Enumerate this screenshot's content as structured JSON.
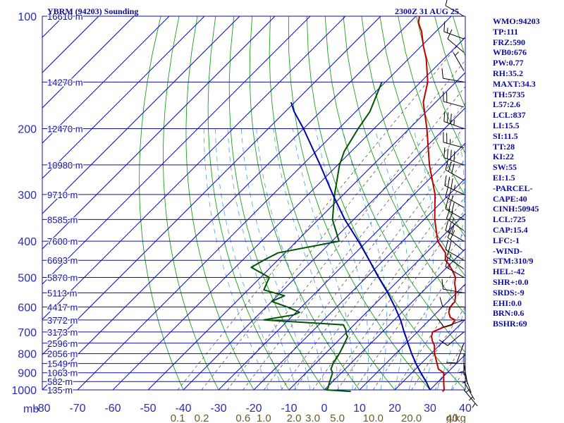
{
  "header": {
    "title": "YBRM (94203) Sounding",
    "timestamp": "2300Z 31 AUG 25"
  },
  "indices": [
    "WMO:94203",
    "TP:111",
    "FRZ:590",
    "WB0:676",
    "PW:0.77",
    "RH:35.2",
    "MAXT:34.3",
    "TH:5735",
    "L57:2.6",
    "LCL:837",
    "LI:15.5",
    "SI:11.5",
    "TT:28",
    "KI:22",
    "SW:55",
    "EI:1.5",
    "-PARCEL-",
    "CAPE:40",
    "CINH:50945",
    "LCL:725",
    "CAP:15.4",
    "LFC:-1",
    "-WIND-",
    "STM:310/9",
    "HEL:-42",
    "SHR+:0.0",
    "SRDS:-9",
    "EHI:0.0",
    "BRN:0.6",
    "BSHR:69"
  ],
  "chart_data": {
    "type": "line",
    "chart_kind": "skew-T log-P thermodynamic diagram",
    "title": "YBRM (94203) Sounding",
    "xlabel": "",
    "ylabel": "mb",
    "xlim": [
      -80,
      40
    ],
    "ylim": [
      1000,
      100
    ],
    "y_scale": "log",
    "skew": "isotherms slanted 45° toward upper right",
    "pressure_ticks": [
      "100",
      "200",
      "300",
      "400",
      "500",
      "600",
      "700",
      "800",
      "900",
      "1000"
    ],
    "pressure_lines": [
      100,
      150,
      200,
      250,
      300,
      350,
      400,
      450,
      500,
      550,
      600,
      650,
      700,
      750,
      800,
      850,
      900,
      950,
      1000
    ],
    "temperature_ticks": [
      "-80",
      "-70",
      "-60",
      "-50",
      "-40",
      "-30",
      "-20",
      "-10",
      "0",
      "10",
      "20",
      "30",
      "40"
    ],
    "height_labels": [
      {
        "p": 100,
        "label": "16610 m"
      },
      {
        "p": 150,
        "label": "14270 m"
      },
      {
        "p": 200,
        "label": "12470 m"
      },
      {
        "p": 250,
        "label": "10980 m"
      },
      {
        "p": 300,
        "label": "9710 m"
      },
      {
        "p": 350,
        "label": "8585 m"
      },
      {
        "p": 400,
        "label": "7600 m"
      },
      {
        "p": 450,
        "label": "6693 m"
      },
      {
        "p": 500,
        "label": "5870 m"
      },
      {
        "p": 550,
        "label": "5113 m"
      },
      {
        "p": 600,
        "label": "4417 m"
      },
      {
        "p": 650,
        "label": "3772 m"
      },
      {
        "p": 700,
        "label": "3173 m"
      },
      {
        "p": 750,
        "label": "2596 m"
      },
      {
        "p": 800,
        "label": "2056 m"
      },
      {
        "p": 850,
        "label": "1549 m"
      },
      {
        "p": 900,
        "label": "1063 m"
      },
      {
        "p": 950,
        "label": "582 m"
      },
      {
        "p": 1000,
        "label": "135 m"
      }
    ],
    "mixing_ratio_labels": [
      {
        "w": 0.1,
        "label": "0.1"
      },
      {
        "w": 0.2,
        "label": "0.2"
      },
      {
        "w": 0.6,
        "label": "0.6"
      },
      {
        "w": 1.0,
        "label": "1.0"
      },
      {
        "w": 2.0,
        "label": "2.0"
      },
      {
        "w": 3.0,
        "label": "3.0"
      },
      {
        "w": 5.0,
        "label": "5.0"
      },
      {
        "w": 10.0,
        "label": "10.0"
      },
      {
        "w": 20.0,
        "label": "20.0"
      },
      {
        "w": 40.0,
        "label": "40"
      }
    ],
    "mixing_ratio_unit": "g/kg",
    "series": [
      {
        "role": "temperature",
        "color": "#c00000",
        "p": [
          1010,
          1000,
          960,
          900,
          880,
          850,
          800,
          760,
          740,
          720,
          700,
          680,
          670,
          650,
          640,
          620,
          600,
          580,
          560,
          540,
          520,
          500,
          480,
          460,
          450,
          430,
          400,
          350,
          300,
          250,
          200,
          170,
          150,
          130,
          120,
          110,
          104,
          100
        ],
        "t": [
          34,
          34,
          32,
          29,
          26.5,
          24.5,
          21,
          18.6,
          16.8,
          15.3,
          14.3,
          16,
          17.8,
          17.2,
          15.2,
          13.3,
          12.2,
          12,
          10.5,
          8.9,
          6.9,
          5.3,
          2.6,
          -0.5,
          -2.4,
          -4.5,
          -10,
          -17,
          -24,
          -34,
          -45,
          -53.5,
          -58,
          -65,
          -69.5,
          -74,
          -77.5,
          -79
        ]
      },
      {
        "role": "dewpoint",
        "color": "#005500",
        "p": [
          1010,
          1000,
          990,
          960,
          900,
          880,
          850,
          800,
          750,
          720,
          710,
          690,
          670,
          650,
          630,
          620,
          600,
          580,
          560,
          540,
          520,
          500,
          470,
          450,
          430,
          400,
          350,
          300,
          250,
          230,
          200,
          180,
          150
        ],
        "t": [
          8,
          0.5,
          0.6,
          -0.5,
          -2.5,
          -4,
          -5,
          -6,
          -7.5,
          -8.5,
          -9.5,
          -11,
          -13,
          -37,
          -30,
          -29,
          -34,
          -40,
          -38,
          -45.5,
          -46.5,
          -47.5,
          -55.5,
          -54,
          -52,
          -38,
          -46,
          -52.5,
          -59.5,
          -62,
          -64.5,
          -66,
          -71
        ]
      },
      {
        "role": "parcel",
        "color": "#0000aa",
        "p": [
          1000,
          950,
          900,
          850,
          800,
          750,
          720,
          700,
          680,
          650,
          600,
          550,
          500,
          450,
          400,
          350,
          300,
          250,
          200,
          180,
          170
        ],
        "t": [
          30,
          26.5,
          22.5,
          18.5,
          14.5,
          10.5,
          8,
          6.2,
          4.5,
          1.8,
          -3.5,
          -9.5,
          -16.5,
          -24,
          -32.5,
          -42.5,
          -53,
          -65,
          -80,
          -87.5,
          -91
        ]
      }
    ],
    "wind_barbs": [
      {
        "p": 100,
        "dir": 300,
        "spd": 10
      },
      {
        "p": 115,
        "dir": 290,
        "spd": 15
      },
      {
        "p": 125,
        "dir": 310,
        "spd": 10
      },
      {
        "p": 140,
        "dir": 330,
        "spd": 5
      },
      {
        "p": 150,
        "dir": 280,
        "spd": 10
      },
      {
        "p": 175,
        "dir": 285,
        "spd": 20
      },
      {
        "p": 200,
        "dir": 290,
        "spd": 35
      },
      {
        "p": 225,
        "dir": 285,
        "spd": 25
      },
      {
        "p": 250,
        "dir": 290,
        "spd": 40
      },
      {
        "p": 275,
        "dir": 300,
        "spd": 30
      },
      {
        "p": 300,
        "dir": 295,
        "spd": 35
      },
      {
        "p": 325,
        "dir": 300,
        "spd": 25
      },
      {
        "p": 350,
        "dir": 300,
        "spd": 30
      },
      {
        "p": 375,
        "dir": 305,
        "spd": 25
      },
      {
        "p": 400,
        "dir": 300,
        "spd": 30
      },
      {
        "p": 425,
        "dir": 310,
        "spd": 20
      },
      {
        "p": 450,
        "dir": 300,
        "spd": 20
      },
      {
        "p": 475,
        "dir": 305,
        "spd": 15
      },
      {
        "p": 500,
        "dir": 300,
        "spd": 15
      },
      {
        "p": 550,
        "dir": 280,
        "spd": 10
      },
      {
        "p": 600,
        "dir": 270,
        "spd": 10
      },
      {
        "p": 650,
        "dir": 250,
        "spd": 10
      },
      {
        "p": 700,
        "dir": 230,
        "spd": 10
      },
      {
        "p": 750,
        "dir": 200,
        "spd": 10
      },
      {
        "p": 800,
        "dir": 180,
        "spd": 5
      },
      {
        "p": 850,
        "dir": 170,
        "spd": 5
      },
      {
        "p": 900,
        "dir": 160,
        "spd": 5
      },
      {
        "p": 950,
        "dir": 150,
        "spd": 5
      },
      {
        "p": 1000,
        "dir": 140,
        "spd": 5
      }
    ],
    "colors": {
      "isobar": "#1010a0",
      "isotherm": "#1010a0",
      "dry_adiabat": "#1aa01a",
      "moist_adiabat": "#4aa0e0",
      "mixing_ratio": "#404040",
      "axis_text": "#2b2bb8",
      "mixing_text": "#6b5a2a",
      "height_text": "#1010a0",
      "barb": "#000000",
      "background": "#ffffff"
    }
  }
}
